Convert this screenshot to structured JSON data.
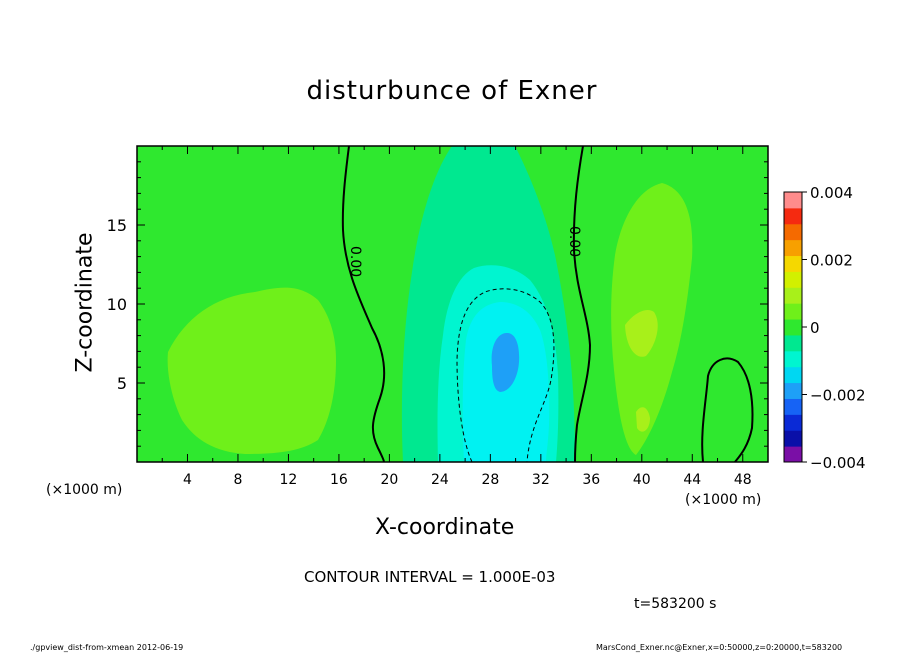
{
  "chart_data": {
    "type": "contour",
    "title": "disturbunce of Exner",
    "xlabel": "X-coordinate",
    "ylabel": "Z-coordinate",
    "x_unit_label": "(×1000 m)",
    "y_unit_label": "(×1000 m)",
    "x_ticks": [
      4,
      8,
      12,
      16,
      20,
      24,
      28,
      32,
      36,
      40,
      44,
      48
    ],
    "y_ticks": [
      5,
      10,
      15
    ],
    "xlim": [
      0,
      50
    ],
    "ylim": [
      0,
      20
    ],
    "colorbar": {
      "min": -0.004,
      "max": 0.004,
      "tick_labels": [
        "0.004",
        "0.002",
        "0",
        "−0.002",
        "−0.004"
      ],
      "tick_values": [
        0.004,
        0.002,
        0,
        -0.002,
        -0.004
      ],
      "levels": [
        -0.004,
        -0.0035,
        -0.003,
        -0.0025,
        -0.002,
        -0.0015,
        -0.001,
        -0.0005,
        0,
        0.0005,
        0.001,
        0.0015,
        0.002,
        0.0025,
        0.003,
        0.0035,
        0.004
      ],
      "colors": [
        "#7a0fa6",
        "#0a0fa8",
        "#0a2ad6",
        "#1663f5",
        "#1ea0f7",
        "#00d7f2",
        "#00f5d0",
        "#00e890",
        "#2fe82f",
        "#6ff01a",
        "#a8f01a",
        "#d2f000",
        "#f5d800",
        "#f7a000",
        "#f56a00",
        "#f52a10",
        "#ff8c8c"
      ]
    },
    "contour_labels": [
      "0.00",
      "0.00"
    ],
    "contour_interval_text": "CONTOUR INTERVAL = 1.000E-03",
    "time_text": "t=583200 s",
    "footer_left": "./gpview_dist-from-xmean  2012-06-19",
    "footer_right": "MarsCond_Exner.nc@Exner,x=0:50000,z=0:20000,t=583200",
    "features": [
      {
        "name": "negative anomaly core",
        "x": 29,
        "z": 6.5,
        "value": -0.0018
      },
      {
        "name": "negative anomaly",
        "x": 29,
        "z": 6,
        "value": -0.0012
      },
      {
        "name": "positive anomaly west",
        "x": 10,
        "z": 6,
        "value": 0.0007
      },
      {
        "name": "positive anomaly east",
        "x": 41,
        "z": 8,
        "value": 0.0007
      }
    ]
  }
}
